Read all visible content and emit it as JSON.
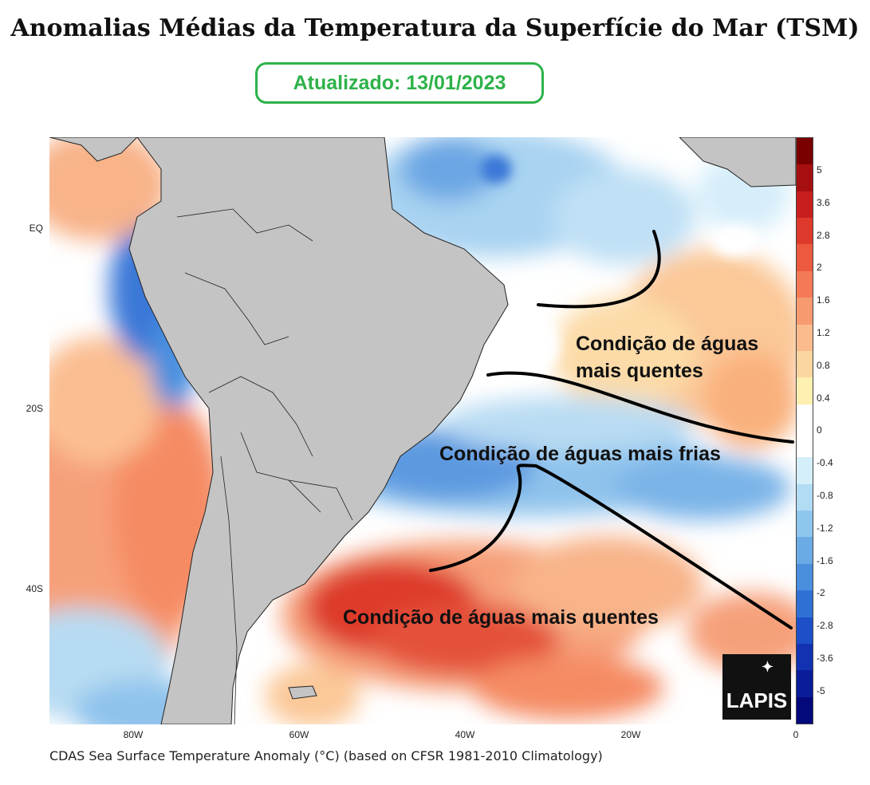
{
  "title": "Anomalias Médias da Temperatura da Superfície do Mar (TSM)",
  "updated": "Atualizado: 13/01/2023",
  "annotations": {
    "warm_north_line1": "Condição de águas",
    "warm_north_line2": "mais quentes",
    "cold_middle": "Condição de águas mais frias",
    "warm_south": "Condição de águas mais quentes"
  },
  "lat_labels": [
    "EQ",
    "20S",
    "40S"
  ],
  "lon_labels": [
    "80W",
    "60W",
    "40W",
    "20W",
    "0"
  ],
  "caption": "CDAS Sea Surface Temperature Anomaly (°C) (based on CFSR 1981-2010 Climatology)",
  "colorbar": {
    "labels": [
      "5",
      "3.6",
      "2.8",
      "2",
      "1.6",
      "1.2",
      "0.8",
      "0.4",
      "0",
      "-0.4",
      "-0.8",
      "-1.2",
      "-1.6",
      "-2",
      "-2.8",
      "-3.6",
      "-5"
    ],
    "colors": [
      "#7a0000",
      "#a60f0f",
      "#c81e1e",
      "#de3a2c",
      "#ec5a3e",
      "#f47a56",
      "#f89a70",
      "#fbbb8c",
      "#fcd6a0",
      "#fdf0b0",
      "#ffffff",
      "#ffffff",
      "#d4eefa",
      "#b2dcf4",
      "#8fc6ee",
      "#6aabe6",
      "#4a8fde",
      "#2f70d4",
      "#1c4fc8",
      "#1232b2",
      "#0a1c9a",
      "#03087a"
    ]
  },
  "logo": "LAPIS",
  "colors": {
    "title_green": "#2db24a",
    "land": "#c4c4c4"
  }
}
